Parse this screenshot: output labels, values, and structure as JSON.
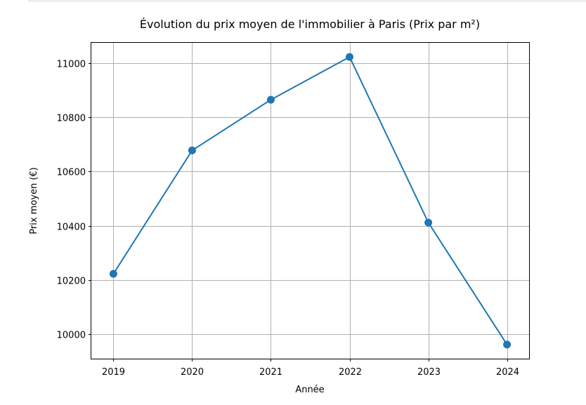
{
  "chart_data": {
    "type": "line",
    "title": "Évolution du prix moyen de l'immobilier à Paris (Prix par m²)",
    "xlabel": "Année",
    "ylabel": "Prix moyen (€)",
    "x": [
      2019,
      2020,
      2021,
      2022,
      2023,
      2024
    ],
    "x_tick_labels": [
      "2019",
      "2020",
      "2021",
      "2022",
      "2023",
      "2024"
    ],
    "xlim": [
      2018.72,
      2024.28
    ],
    "y_ticks": [
      10000,
      10200,
      10400,
      10600,
      10800,
      11000
    ],
    "y_tick_labels": [
      "10000",
      "10200",
      "10400",
      "10600",
      "10800",
      "11000"
    ],
    "ylim": [
      9910,
      11075
    ],
    "grid": true,
    "series": [
      {
        "values": [
          10223,
          10678,
          10865,
          11023,
          10412,
          9962
        ],
        "color": "#1f77b4",
        "marker": "circle"
      }
    ]
  }
}
